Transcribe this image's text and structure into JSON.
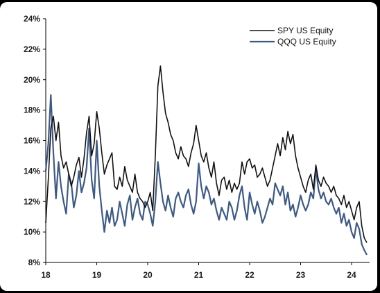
{
  "chart_data": {
    "type": "line",
    "title": "",
    "xlabel": "",
    "ylabel": "",
    "x_tick_labels": [
      "18",
      "19",
      "20",
      "21",
      "22",
      "23",
      "24"
    ],
    "x_tick_years": [
      2018,
      2019,
      2020,
      2021,
      2022,
      2023,
      2024
    ],
    "xlim": [
      2018,
      2024.35
    ],
    "y_tick_labels": [
      "8%",
      "10%",
      "12%",
      "14%",
      "16%",
      "18%",
      "20%",
      "22%",
      "24%"
    ],
    "y_tick_values": [
      8,
      10,
      12,
      14,
      16,
      18,
      20,
      22,
      24
    ],
    "ylim": [
      8,
      24
    ],
    "grid": false,
    "legend_position": "top-right",
    "series": [
      {
        "name": "SPY US Equity",
        "color": "#111111",
        "x": [
          2018.0,
          2018.05,
          2018.1,
          2018.15,
          2018.2,
          2018.25,
          2018.3,
          2018.35,
          2018.4,
          2018.45,
          2018.5,
          2018.55,
          2018.6,
          2018.65,
          2018.7,
          2018.75,
          2018.8,
          2018.85,
          2018.9,
          2018.95,
          2019.0,
          2019.05,
          2019.1,
          2019.15,
          2019.2,
          2019.25,
          2019.3,
          2019.35,
          2019.4,
          2019.45,
          2019.5,
          2019.55,
          2019.6,
          2019.65,
          2019.7,
          2019.75,
          2019.8,
          2019.85,
          2019.9,
          2019.95,
          2020.0,
          2020.05,
          2020.1,
          2020.15,
          2020.2,
          2020.25,
          2020.3,
          2020.35,
          2020.4,
          2020.45,
          2020.5,
          2020.55,
          2020.6,
          2020.65,
          2020.7,
          2020.75,
          2020.8,
          2020.85,
          2020.9,
          2020.95,
          2021.0,
          2021.05,
          2021.1,
          2021.15,
          2021.2,
          2021.25,
          2021.3,
          2021.35,
          2021.4,
          2021.45,
          2021.5,
          2021.55,
          2021.6,
          2021.65,
          2021.7,
          2021.75,
          2021.8,
          2021.85,
          2021.9,
          2021.95,
          2022.0,
          2022.05,
          2022.1,
          2022.15,
          2022.2,
          2022.25,
          2022.3,
          2022.35,
          2022.4,
          2022.45,
          2022.5,
          2022.55,
          2022.6,
          2022.65,
          2022.7,
          2022.75,
          2022.8,
          2022.85,
          2022.9,
          2022.95,
          2023.0,
          2023.05,
          2023.1,
          2023.15,
          2023.2,
          2023.25,
          2023.3,
          2023.35,
          2023.4,
          2023.45,
          2023.5,
          2023.55,
          2023.6,
          2023.65,
          2023.7,
          2023.75,
          2023.8,
          2023.85,
          2023.9,
          2023.95,
          2024.0,
          2024.05,
          2024.1,
          2024.15,
          2024.2,
          2024.25,
          2024.3
        ],
        "y": [
          10.6,
          13.5,
          16.8,
          17.6,
          16.0,
          17.2,
          15.0,
          14.2,
          14.6,
          13.8,
          13.0,
          13.6,
          14.4,
          14.9,
          13.6,
          14.8,
          16.5,
          17.6,
          15.0,
          15.8,
          17.9,
          16.8,
          15.2,
          13.8,
          14.4,
          14.8,
          15.2,
          13.0,
          12.8,
          13.6,
          13.0,
          14.3,
          13.4,
          13.0,
          12.6,
          13.8,
          12.6,
          12.2,
          12.0,
          11.6,
          12.0,
          12.6,
          11.4,
          15.0,
          19.6,
          20.9,
          19.2,
          17.8,
          17.2,
          16.4,
          16.0,
          15.2,
          14.8,
          15.6,
          15.0,
          14.8,
          14.3,
          15.2,
          15.8,
          17.0,
          16.0,
          15.0,
          14.6,
          15.2,
          14.2,
          13.6,
          14.6,
          13.2,
          12.4,
          13.4,
          13.6,
          12.8,
          13.4,
          12.6,
          13.2,
          12.8,
          13.2,
          14.6,
          13.8,
          14.6,
          14.8,
          14.2,
          14.4,
          13.6,
          13.8,
          14.2,
          13.6,
          13.0,
          13.4,
          14.2,
          15.0,
          15.8,
          15.0,
          16.2,
          15.4,
          16.6,
          15.8,
          16.4,
          15.0,
          14.2,
          13.6,
          13.0,
          12.6,
          13.4,
          13.8,
          12.8,
          14.4,
          13.4,
          13.0,
          13.6,
          13.2,
          13.0,
          12.6,
          13.0,
          12.4,
          12.2,
          11.8,
          12.4,
          11.6,
          12.0,
          11.4,
          10.8,
          11.6,
          12.0,
          10.4,
          9.6,
          9.3
        ]
      },
      {
        "name": "QQQ US Equity",
        "color": "#3d5a86",
        "x": [
          2018.0,
          2018.05,
          2018.1,
          2018.15,
          2018.2,
          2018.25,
          2018.3,
          2018.35,
          2018.4,
          2018.45,
          2018.5,
          2018.55,
          2018.6,
          2018.65,
          2018.7,
          2018.75,
          2018.8,
          2018.85,
          2018.9,
          2018.95,
          2019.0,
          2019.05,
          2019.1,
          2019.15,
          2019.2,
          2019.25,
          2019.3,
          2019.35,
          2019.4,
          2019.45,
          2019.5,
          2019.55,
          2019.6,
          2019.65,
          2019.7,
          2019.75,
          2019.8,
          2019.85,
          2019.9,
          2019.95,
          2020.0,
          2020.05,
          2020.1,
          2020.15,
          2020.2,
          2020.25,
          2020.3,
          2020.35,
          2020.4,
          2020.45,
          2020.5,
          2020.55,
          2020.6,
          2020.65,
          2020.7,
          2020.75,
          2020.8,
          2020.85,
          2020.9,
          2020.95,
          2021.0,
          2021.05,
          2021.1,
          2021.15,
          2021.2,
          2021.25,
          2021.3,
          2021.35,
          2021.4,
          2021.45,
          2021.5,
          2021.55,
          2021.6,
          2021.65,
          2021.7,
          2021.75,
          2021.8,
          2021.85,
          2021.9,
          2021.95,
          2022.0,
          2022.05,
          2022.1,
          2022.15,
          2022.2,
          2022.25,
          2022.3,
          2022.35,
          2022.4,
          2022.45,
          2022.5,
          2022.55,
          2022.6,
          2022.65,
          2022.7,
          2022.75,
          2022.8,
          2022.85,
          2022.9,
          2022.95,
          2023.0,
          2023.05,
          2023.1,
          2023.15,
          2023.2,
          2023.25,
          2023.3,
          2023.35,
          2023.4,
          2023.45,
          2023.5,
          2023.55,
          2023.6,
          2023.65,
          2023.7,
          2023.75,
          2023.8,
          2023.85,
          2023.9,
          2023.95,
          2024.0,
          2024.05,
          2024.1,
          2024.15,
          2024.2,
          2024.25,
          2024.3
        ],
        "y": [
          14.0,
          15.8,
          19.0,
          15.2,
          12.2,
          14.6,
          13.0,
          12.0,
          11.2,
          13.8,
          13.2,
          11.6,
          12.4,
          14.0,
          12.6,
          13.2,
          14.2,
          16.8,
          13.4,
          12.2,
          16.0,
          13.0,
          11.4,
          10.0,
          11.4,
          10.6,
          11.6,
          10.4,
          10.8,
          12.0,
          11.2,
          10.4,
          11.8,
          12.4,
          10.8,
          11.6,
          12.2,
          11.2,
          10.8,
          12.0,
          11.8,
          11.2,
          10.4,
          12.0,
          14.6,
          13.2,
          12.0,
          11.4,
          12.4,
          11.6,
          11.0,
          12.2,
          12.6,
          12.0,
          11.6,
          12.4,
          12.8,
          11.8,
          11.2,
          12.0,
          14.5,
          13.0,
          12.2,
          13.0,
          12.6,
          11.8,
          12.2,
          11.4,
          10.8,
          11.6,
          11.2,
          10.8,
          12.0,
          11.6,
          10.8,
          11.4,
          12.4,
          13.0,
          11.6,
          10.8,
          12.6,
          11.8,
          11.2,
          12.0,
          11.4,
          10.6,
          11.0,
          11.6,
          12.2,
          11.8,
          13.2,
          12.8,
          12.4,
          13.0,
          11.8,
          12.6,
          11.4,
          11.8,
          11.0,
          11.6,
          12.4,
          11.8,
          11.4,
          11.8,
          12.6,
          12.2,
          14.2,
          12.8,
          12.2,
          12.6,
          12.0,
          11.8,
          12.2,
          11.6,
          11.2,
          11.6,
          10.6,
          11.2,
          10.4,
          10.8,
          10.0,
          9.6,
          10.6,
          10.2,
          9.2,
          8.8,
          8.5
        ]
      }
    ]
  }
}
